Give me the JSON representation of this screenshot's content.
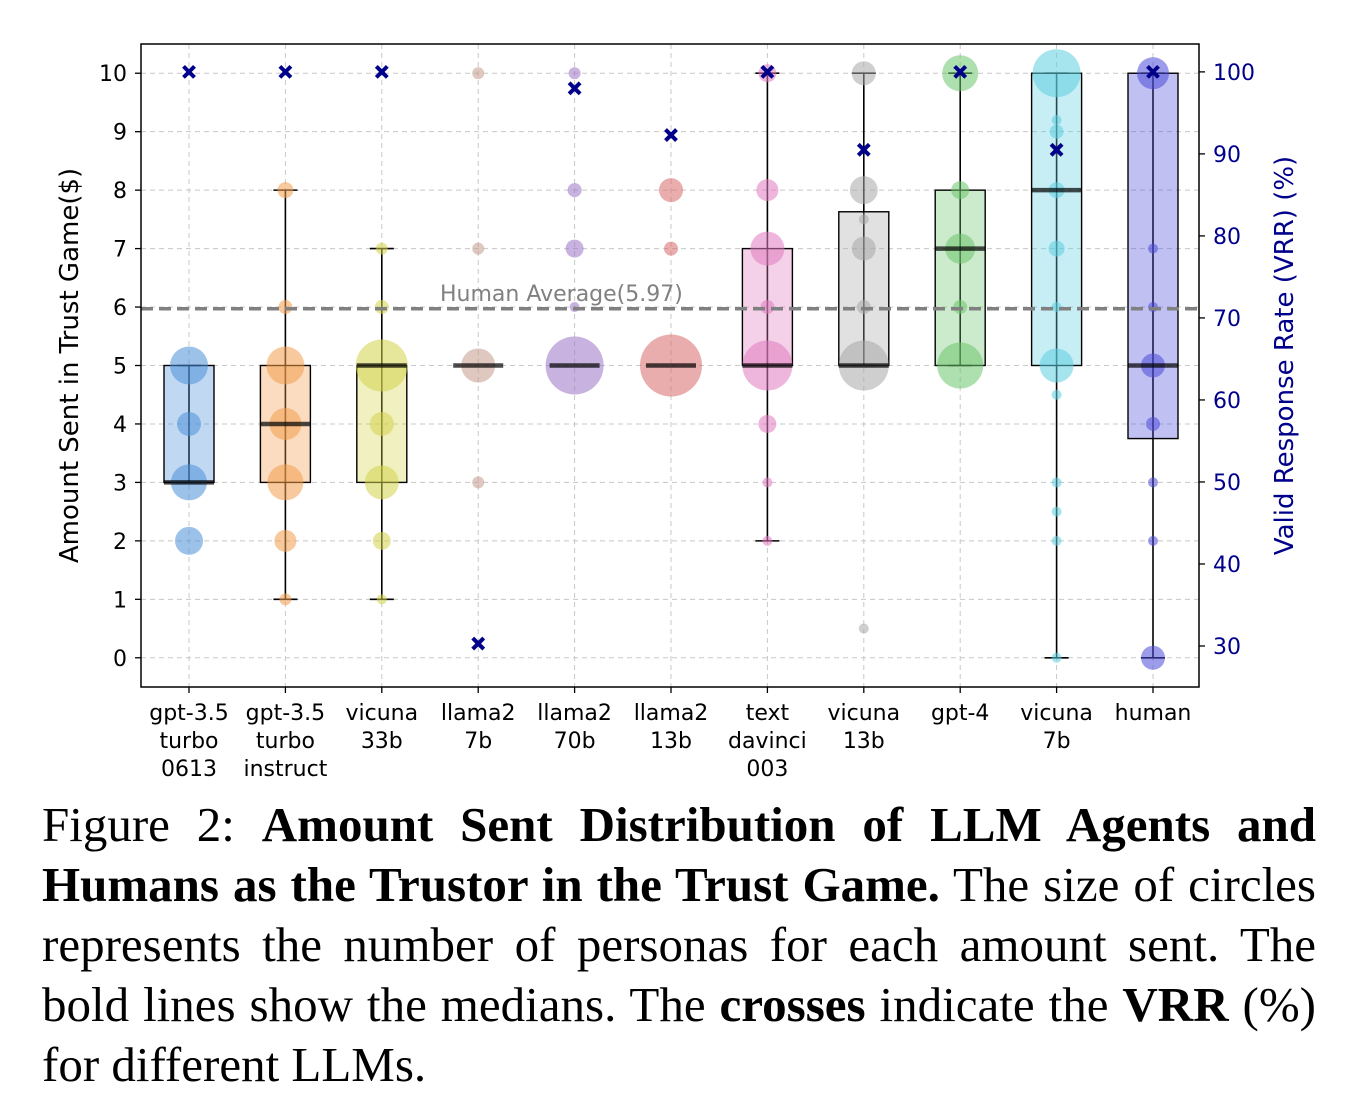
{
  "chart_data": {
    "type": "box+bubble",
    "ylabel": "Amount Sent in Trust Game($)",
    "ylabel_right": "Valid Response Rate (VRR) (%)",
    "ylim": [
      -0.5,
      10.5
    ],
    "ylim_right": [
      25,
      103.4
    ],
    "yticks": [
      "0",
      "1",
      "2",
      "3",
      "4",
      "5",
      "6",
      "7",
      "8",
      "9",
      "10"
    ],
    "yticks_right": [
      "30",
      "40",
      "50",
      "60",
      "70",
      "80",
      "90",
      "100"
    ],
    "grid": true,
    "reference_line": {
      "value": 5.97,
      "label": "Human Average(5.97)"
    },
    "categories": [
      {
        "label": [
          "gpt-3.5",
          "turbo",
          "0613"
        ],
        "color": "#4a90d9",
        "q1": 3,
        "median": 3,
        "q3": 5,
        "whisker_low": 3,
        "whisker_high": 5,
        "vrr": 100,
        "bubbles": [
          [
            2,
            14
          ],
          [
            3,
            18
          ],
          [
            4,
            12
          ],
          [
            5,
            19
          ]
        ]
      },
      {
        "label": [
          "gpt-3.5",
          "turbo",
          "instruct"
        ],
        "color": "#f39c4a",
        "q1": 3,
        "median": 4,
        "q3": 5,
        "whisker_low": 1,
        "whisker_high": 8,
        "vrr": 100,
        "bubbles": [
          [
            1,
            6
          ],
          [
            2,
            11
          ],
          [
            3,
            18
          ],
          [
            4,
            16
          ],
          [
            5,
            19
          ],
          [
            6,
            7
          ],
          [
            8,
            8
          ]
        ]
      },
      {
        "label": [
          "vicuna",
          "33b"
        ],
        "color": "#d4d44a",
        "q1": 3,
        "median": 5,
        "q3": 5,
        "whisker_low": 1,
        "whisker_high": 7,
        "vrr": 100,
        "bubbles": [
          [
            1,
            5
          ],
          [
            2,
            9
          ],
          [
            3,
            17
          ],
          [
            4,
            12
          ],
          [
            5,
            26
          ],
          [
            6,
            7
          ],
          [
            7,
            6
          ]
        ]
      },
      {
        "label": [
          "llama2",
          "7b"
        ],
        "color": "#c49a8a",
        "q1": 5,
        "median": 5,
        "q3": 5,
        "whisker_low": 5,
        "whisker_high": 5,
        "vrr": 30.3,
        "bubbles": [
          [
            3,
            6
          ],
          [
            5,
            17
          ],
          [
            7,
            6
          ],
          [
            10,
            6
          ]
        ]
      },
      {
        "label": [
          "llama2",
          "70b"
        ],
        "color": "#9b72c4",
        "q1": 5,
        "median": 5,
        "q3": 5,
        "whisker_low": 5,
        "whisker_high": 5,
        "vrr": 98,
        "bubbles": [
          [
            5,
            29
          ],
          [
            6,
            5
          ],
          [
            7,
            9
          ],
          [
            8,
            7
          ],
          [
            10,
            6
          ]
        ]
      },
      {
        "label": [
          "llama2",
          "13b"
        ],
        "color": "#d96a6a",
        "q1": 5,
        "median": 5,
        "q3": 5,
        "whisker_low": 5,
        "whisker_high": 5,
        "vrr": 92.3,
        "bubbles": [
          [
            5,
            31
          ],
          [
            7,
            7
          ],
          [
            8,
            12
          ]
        ]
      },
      {
        "label": [
          "text",
          "davinci",
          "003"
        ],
        "color": "#e07ac0",
        "q1": 5,
        "median": 5,
        "q3": 7,
        "whisker_low": 2,
        "whisker_high": 10,
        "vrr": 100,
        "bubbles": [
          [
            2,
            5
          ],
          [
            3,
            5
          ],
          [
            4,
            9
          ],
          [
            5,
            25
          ],
          [
            6,
            7
          ],
          [
            7,
            17
          ],
          [
            8,
            11
          ],
          [
            10,
            9
          ]
        ]
      },
      {
        "label": [
          "vicuna",
          "13b"
        ],
        "color": "#a8a8a8",
        "q1": 5,
        "median": 5,
        "q3": 7.63,
        "whisker_low": 5,
        "whisker_high": 10,
        "vrr": 90.5,
        "bubbles": [
          [
            0.5,
            5
          ],
          [
            5,
            25
          ],
          [
            6,
            7
          ],
          [
            7,
            12
          ],
          [
            7.5,
            5
          ],
          [
            8,
            14
          ],
          [
            10,
            12
          ]
        ]
      },
      {
        "label": [
          "gpt-4"
        ],
        "color": "#6cc46c",
        "q1": 5,
        "median": 7,
        "q3": 8,
        "whisker_low": 5,
        "whisker_high": 10,
        "vrr": 100,
        "bubbles": [
          [
            5,
            23
          ],
          [
            6,
            7
          ],
          [
            7,
            15
          ],
          [
            8,
            9
          ],
          [
            10,
            18
          ]
        ]
      },
      {
        "label": [
          "vicuna",
          "7b"
        ],
        "color": "#5ccfe0",
        "q1": 5,
        "median": 8,
        "q3": 10,
        "whisker_low": 0,
        "whisker_high": 10,
        "vrr": 90.5,
        "bubbles": [
          [
            0,
            5
          ],
          [
            2,
            5
          ],
          [
            2.5,
            5
          ],
          [
            3,
            5
          ],
          [
            4.5,
            5
          ],
          [
            5,
            17
          ],
          [
            6,
            5
          ],
          [
            7,
            8
          ],
          [
            8,
            8
          ],
          [
            9,
            7
          ],
          [
            9.2,
            5
          ],
          [
            10,
            24
          ]
        ]
      },
      {
        "label": [
          "human"
        ],
        "color": "#4a4ad9",
        "q1": 3.75,
        "median": 5,
        "q3": 10,
        "whisker_low": 0,
        "whisker_high": 10,
        "vrr": 100,
        "bubbles": [
          [
            0,
            12
          ],
          [
            2,
            5
          ],
          [
            3,
            5
          ],
          [
            4,
            7
          ],
          [
            5,
            12
          ],
          [
            6,
            5
          ],
          [
            7,
            5
          ],
          [
            10,
            16
          ]
        ]
      }
    ]
  },
  "caption": {
    "prefix": "Figure 2: ",
    "bold_title": "Amount Sent Distribution of LLM Agents and Humans as the Trustor in the Trust Game.",
    "text1": " The size of circles represents the number of personas for each amount sent.  The bold lines show the medians.  The ",
    "bold_crosses": "crosses",
    "text2": " indicate the ",
    "bold_vrr": "VRR",
    "text3": " (%) for different LLMs."
  }
}
